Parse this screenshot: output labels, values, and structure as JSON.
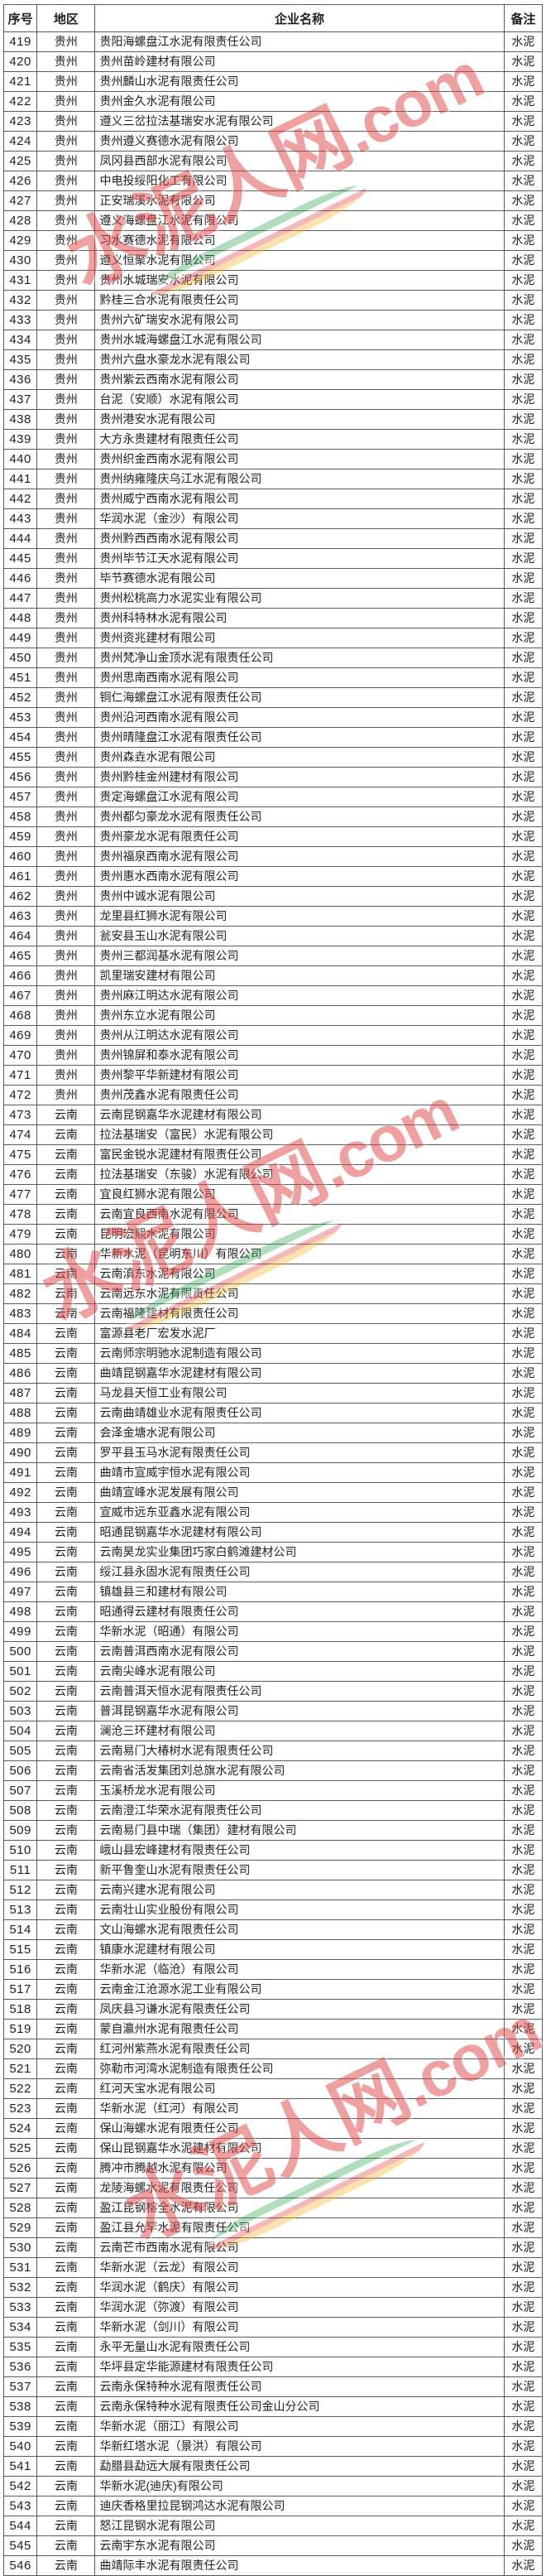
{
  "table": {
    "columns": {
      "no": "序号",
      "region": "地区",
      "name": "企业名称",
      "note": "备注"
    },
    "rows": [
      {
        "no": 419,
        "region": "贵州",
        "name": "贵阳海螺盘江水泥有限责任公司",
        "note": "水泥"
      },
      {
        "no": 420,
        "region": "贵州",
        "name": "贵州苗岭建材有限公司",
        "note": "水泥"
      },
      {
        "no": 421,
        "region": "贵州",
        "name": "贵州麟山水泥有限责任公司",
        "note": "水泥"
      },
      {
        "no": 422,
        "region": "贵州",
        "name": "贵州金久水泥有限公司",
        "note": "水泥"
      },
      {
        "no": 423,
        "region": "贵州",
        "name": "遵义三岔拉法基瑞安水泥有限公司",
        "note": "水泥"
      },
      {
        "no": 424,
        "region": "贵州",
        "name": "贵州遵义赛德水泥有限公司",
        "note": "水泥"
      },
      {
        "no": 425,
        "region": "贵州",
        "name": "凤冈县西部水泥有限公司",
        "note": "水泥"
      },
      {
        "no": 426,
        "region": "贵州",
        "name": "中电投绥阳化工有限公司",
        "note": "水泥"
      },
      {
        "no": 427,
        "region": "贵州",
        "name": "正安瑞溪水泥有限公司",
        "note": "水泥"
      },
      {
        "no": 428,
        "region": "贵州",
        "name": "遵义海螺盘江水泥有限公司",
        "note": "水泥"
      },
      {
        "no": 429,
        "region": "贵州",
        "name": "习水赛德水泥有限公司",
        "note": "水泥"
      },
      {
        "no": 430,
        "region": "贵州",
        "name": "遵义恒聚水泥有限公司",
        "note": "水泥"
      },
      {
        "no": 431,
        "region": "贵州",
        "name": "贵州水城瑞安水泥有限公司",
        "note": "水泥"
      },
      {
        "no": 432,
        "region": "贵州",
        "name": "黔桂三合水泥有限责任公司",
        "note": "水泥"
      },
      {
        "no": 433,
        "region": "贵州",
        "name": "贵州六矿瑞安水泥有限公司",
        "note": "水泥"
      },
      {
        "no": 434,
        "region": "贵州",
        "name": "贵州水城海螺盘江水泥有限公司",
        "note": "水泥"
      },
      {
        "no": 435,
        "region": "贵州",
        "name": "贵州六盘水豪龙水泥有限公司",
        "note": "水泥"
      },
      {
        "no": 436,
        "region": "贵州",
        "name": "贵州紫云西南水泥有限公司",
        "note": "水泥"
      },
      {
        "no": 437,
        "region": "贵州",
        "name": "台泥（安顺）水泥有限公司",
        "note": "水泥"
      },
      {
        "no": 438,
        "region": "贵州",
        "name": "贵州港安水泥有限公司",
        "note": "水泥"
      },
      {
        "no": 439,
        "region": "贵州",
        "name": "大方永贵建材有限责任公司",
        "note": "水泥"
      },
      {
        "no": 440,
        "region": "贵州",
        "name": "贵州织金西南水泥有限公司",
        "note": "水泥"
      },
      {
        "no": 441,
        "region": "贵州",
        "name": "贵州纳雍隆庆乌江水泥有限公司",
        "note": "水泥"
      },
      {
        "no": 442,
        "region": "贵州",
        "name": "贵州威宁西南水泥有限公司",
        "note": "水泥"
      },
      {
        "no": 443,
        "region": "贵州",
        "name": "华润水泥（金沙）有限公司",
        "note": "水泥"
      },
      {
        "no": 444,
        "region": "贵州",
        "name": "贵州黔西西南水泥有限公司",
        "note": "水泥"
      },
      {
        "no": 445,
        "region": "贵州",
        "name": "贵州毕节江天水泥有限公司",
        "note": "水泥"
      },
      {
        "no": 446,
        "region": "贵州",
        "name": "毕节赛德水泥有限公司",
        "note": "水泥"
      },
      {
        "no": 447,
        "region": "贵州",
        "name": "贵州松桃高力水泥实业有限公司",
        "note": "水泥"
      },
      {
        "no": 448,
        "region": "贵州",
        "name": "贵州科特林水泥有限公司",
        "note": "水泥"
      },
      {
        "no": 449,
        "region": "贵州",
        "name": "贵州资兆建材有限公司",
        "note": "水泥"
      },
      {
        "no": 450,
        "region": "贵州",
        "name": "贵州梵净山金顶水泥有限责任公司",
        "note": "水泥"
      },
      {
        "no": 451,
        "region": "贵州",
        "name": "贵州思南西南水泥有限公司",
        "note": "水泥"
      },
      {
        "no": 452,
        "region": "贵州",
        "name": "铜仁海螺盘江水泥有限责任公司",
        "note": "水泥"
      },
      {
        "no": 453,
        "region": "贵州",
        "name": "贵州沿河西南水泥有限公司",
        "note": "水泥"
      },
      {
        "no": 454,
        "region": "贵州",
        "name": "贵州晴隆盘江水泥有限责任公司",
        "note": "水泥"
      },
      {
        "no": 455,
        "region": "贵州",
        "name": "贵州森垚水泥有限公司",
        "note": "水泥"
      },
      {
        "no": 456,
        "region": "贵州",
        "name": "贵州黔桂金州建材有限公司",
        "note": "水泥"
      },
      {
        "no": 457,
        "region": "贵州",
        "name": "贵定海螺盘江水泥有限公司",
        "note": "水泥"
      },
      {
        "no": 458,
        "region": "贵州",
        "name": "贵州都匀豪龙水泥有限责任公司",
        "note": "水泥"
      },
      {
        "no": 459,
        "region": "贵州",
        "name": "贵州豪龙水泥有限责任公司",
        "note": "水泥"
      },
      {
        "no": 460,
        "region": "贵州",
        "name": "贵州福泉西南水泥有限公司",
        "note": "水泥"
      },
      {
        "no": 461,
        "region": "贵州",
        "name": "贵州惠水西南水泥有限公司",
        "note": "水泥"
      },
      {
        "no": 462,
        "region": "贵州",
        "name": "贵州中诚水泥有限公司",
        "note": "水泥"
      },
      {
        "no": 463,
        "region": "贵州",
        "name": "龙里县红狮水泥有限公司",
        "note": "水泥"
      },
      {
        "no": 464,
        "region": "贵州",
        "name": "瓮安县玉山水泥有限公司",
        "note": "水泥"
      },
      {
        "no": 465,
        "region": "贵州",
        "name": "贵州三都润基水泥有限公司",
        "note": "水泥"
      },
      {
        "no": 466,
        "region": "贵州",
        "name": "凯里瑞安建材有限公司",
        "note": "水泥"
      },
      {
        "no": 467,
        "region": "贵州",
        "name": "贵州麻江明达水泥有限公司",
        "note": "水泥"
      },
      {
        "no": 468,
        "region": "贵州",
        "name": "贵州东立水泥有限公司",
        "note": "水泥"
      },
      {
        "no": 469,
        "region": "贵州",
        "name": "贵州从江明达水泥有限公司",
        "note": "水泥"
      },
      {
        "no": 470,
        "region": "贵州",
        "name": "贵州锦屏和泰水泥有限公司",
        "note": "水泥"
      },
      {
        "no": 471,
        "region": "贵州",
        "name": "贵州黎平华新建材有限公司",
        "note": "水泥"
      },
      {
        "no": 472,
        "region": "贵州",
        "name": "贵州茂鑫水泥有限责任公司",
        "note": "水泥"
      },
      {
        "no": 473,
        "region": "云南",
        "name": "云南昆钢嘉华水泥建材有限公司",
        "note": "水泥"
      },
      {
        "no": 474,
        "region": "云南",
        "name": "拉法基瑞安（富民）水泥有限公司",
        "note": "水泥"
      },
      {
        "no": 475,
        "region": "云南",
        "name": "富民金锐水泥建材有限责任公司",
        "note": "水泥"
      },
      {
        "no": 476,
        "region": "云南",
        "name": "拉法基瑞安（东骏）水泥有限公司",
        "note": "水泥"
      },
      {
        "no": 477,
        "region": "云南",
        "name": "宜良红狮水泥有限公司",
        "note": "水泥"
      },
      {
        "no": 478,
        "region": "云南",
        "name": "云南宜良西南水泥有限公司",
        "note": "水泥"
      },
      {
        "no": 479,
        "region": "云南",
        "name": "昆明宏熙水泥有限公司",
        "note": "水泥"
      },
      {
        "no": 480,
        "region": "云南",
        "name": "华新水泥（昆明东川）有限公司",
        "note": "水泥"
      },
      {
        "no": 481,
        "region": "云南",
        "name": "云南滇东水泥有限公司",
        "note": "水泥"
      },
      {
        "no": 482,
        "region": "云南",
        "name": "云南远东水泥有限责任公司",
        "note": "水泥"
      },
      {
        "no": 483,
        "region": "云南",
        "name": "云南福隆建材有限责任公司",
        "note": "水泥"
      },
      {
        "no": 484,
        "region": "云南",
        "name": "富源县老厂宏发水泥厂",
        "note": "水泥"
      },
      {
        "no": 485,
        "region": "云南",
        "name": "云南师宗明驰水泥制造有限公司",
        "note": "水泥"
      },
      {
        "no": 486,
        "region": "云南",
        "name": "曲靖昆钢嘉华水泥建材有限公司",
        "note": "水泥"
      },
      {
        "no": 487,
        "region": "云南",
        "name": "马龙县天恒工业有限公司",
        "note": "水泥"
      },
      {
        "no": 488,
        "region": "云南",
        "name": "云南曲靖雄业水泥有限责任公司",
        "note": "水泥"
      },
      {
        "no": 489,
        "region": "云南",
        "name": "会泽金塘水泥有限公司",
        "note": "水泥"
      },
      {
        "no": 490,
        "region": "云南",
        "name": "罗平县玉马水泥有限责任公司",
        "note": "水泥"
      },
      {
        "no": 491,
        "region": "云南",
        "name": "曲靖市宣威宇恒水泥有限公司",
        "note": "水泥"
      },
      {
        "no": 492,
        "region": "云南",
        "name": "曲靖宣峰水泥发展有限公司",
        "note": "水泥"
      },
      {
        "no": 493,
        "region": "云南",
        "name": "宣威市远东亚鑫水泥有限公司",
        "note": "水泥"
      },
      {
        "no": 494,
        "region": "云南",
        "name": "昭通昆钢嘉华水泥建材有限公司",
        "note": "水泥"
      },
      {
        "no": 495,
        "region": "云南",
        "name": "云南昊龙实业集团巧家白鹤滩建材公司",
        "note": "水泥"
      },
      {
        "no": 496,
        "region": "云南",
        "name": "绥江县永固水泥有限责任公司",
        "note": "水泥"
      },
      {
        "no": 497,
        "region": "云南",
        "name": "镇雄县三和建材有限公司",
        "note": "水泥"
      },
      {
        "no": 498,
        "region": "云南",
        "name": "昭通得云建材有限责任公司",
        "note": "水泥"
      },
      {
        "no": 499,
        "region": "云南",
        "name": "华新水泥（昭通）有限公司",
        "note": "水泥"
      },
      {
        "no": 500,
        "region": "云南",
        "name": "云南普洱西南水泥有限公司",
        "note": "水泥"
      },
      {
        "no": 501,
        "region": "云南",
        "name": "云南尖峰水泥有限公司",
        "note": "水泥"
      },
      {
        "no": 502,
        "region": "云南",
        "name": "云南普洱天恒水泥有限责任公司",
        "note": "水泥"
      },
      {
        "no": 503,
        "region": "云南",
        "name": "普洱昆钢嘉华水泥有限公司",
        "note": "水泥"
      },
      {
        "no": 504,
        "region": "云南",
        "name": "澜沧三环建材有限公司",
        "note": "水泥"
      },
      {
        "no": 505,
        "region": "云南",
        "name": "云南易门大椿树水泥有限责任公司",
        "note": "水泥"
      },
      {
        "no": 506,
        "region": "云南",
        "name": "云南省活发集团刘总旗水泥有限公司",
        "note": "水泥"
      },
      {
        "no": 507,
        "region": "云南",
        "name": "玉溪桥龙水泥有限公司",
        "note": "水泥"
      },
      {
        "no": 508,
        "region": "云南",
        "name": "云南澄江华荣水泥有限责任公司",
        "note": "水泥"
      },
      {
        "no": 509,
        "region": "云南",
        "name": "云南易门县中瑞（集团）建材有限公司",
        "note": "水泥"
      },
      {
        "no": 510,
        "region": "云南",
        "name": "峨山县宏峰建材有限责任公司",
        "note": "水泥"
      },
      {
        "no": 511,
        "region": "云南",
        "name": "新平鲁奎山水泥有限责任公司",
        "note": "水泥"
      },
      {
        "no": 512,
        "region": "云南",
        "name": "云南兴建水泥有限公司",
        "note": "水泥"
      },
      {
        "no": 513,
        "region": "云南",
        "name": "云南壮山实业股份有限公司",
        "note": "水泥"
      },
      {
        "no": 514,
        "region": "云南",
        "name": "文山海螺水泥有限责任公司",
        "note": "水泥"
      },
      {
        "no": 515,
        "region": "云南",
        "name": "镇康水泥建材有限公司",
        "note": "水泥"
      },
      {
        "no": 516,
        "region": "云南",
        "name": "华新水泥（临沧）有限公司",
        "note": "水泥"
      },
      {
        "no": 517,
        "region": "云南",
        "name": "云南金江沧源水泥工业有限公司",
        "note": "水泥"
      },
      {
        "no": 518,
        "region": "云南",
        "name": "凤庆县习谦水泥有限责任公司",
        "note": "水泥"
      },
      {
        "no": 519,
        "region": "云南",
        "name": "蒙自瀛州水泥有限责任公司",
        "note": "水泥"
      },
      {
        "no": 520,
        "region": "云南",
        "name": "红河州紫燕水泥有限责任公司",
        "note": "水泥"
      },
      {
        "no": 521,
        "region": "云南",
        "name": "弥勒市河湾水泥制造有限责任公司",
        "note": "水泥"
      },
      {
        "no": 522,
        "region": "云南",
        "name": "红河天宝水泥有限公司",
        "note": "水泥"
      },
      {
        "no": 523,
        "region": "云南",
        "name": "华新水泥（红河）有限公司",
        "note": "水泥"
      },
      {
        "no": 524,
        "region": "云南",
        "name": "保山海螺水泥有限责任公司",
        "note": "水泥"
      },
      {
        "no": 525,
        "region": "云南",
        "name": "保山昆钢嘉华水泥建材有限公司",
        "note": "水泥"
      },
      {
        "no": 526,
        "region": "云南",
        "name": "腾冲市腾越水泥有限公司",
        "note": "水泥"
      },
      {
        "no": 527,
        "region": "云南",
        "name": "龙陵海螺水泥有限责任公司",
        "note": "水泥"
      },
      {
        "no": 528,
        "region": "云南",
        "name": "盈江昆钢榕全水泥有限公司",
        "note": "水泥"
      },
      {
        "no": 529,
        "region": "云南",
        "name": "盈江县允罕水泥有限责任公司",
        "note": "水泥"
      },
      {
        "no": 530,
        "region": "云南",
        "name": "云南芒市西南水泥有限公司",
        "note": "水泥"
      },
      {
        "no": 531,
        "region": "云南",
        "name": "华新水泥（云龙）有限公司",
        "note": "水泥"
      },
      {
        "no": 532,
        "region": "云南",
        "name": "华润水泥（鹤庆）有限公司",
        "note": "水泥"
      },
      {
        "no": 533,
        "region": "云南",
        "name": "华润水泥（弥渡）有限公司",
        "note": "水泥"
      },
      {
        "no": 534,
        "region": "云南",
        "name": "华新水泥（剑川）有限公司",
        "note": "水泥"
      },
      {
        "no": 535,
        "region": "云南",
        "name": "永平无量山水泥有限责任公司",
        "note": "水泥"
      },
      {
        "no": 536,
        "region": "云南",
        "name": "华坪县定华能源建材有限责任公司",
        "note": "水泥"
      },
      {
        "no": 537,
        "region": "云南",
        "name": "云南永保特种水泥有限责任公司",
        "note": "水泥"
      },
      {
        "no": 538,
        "region": "云南",
        "name": "云南永保特种水泥有限责任公司金山分公司",
        "note": "水泥"
      },
      {
        "no": 539,
        "region": "云南",
        "name": "华新水泥（丽江）有限公司",
        "note": "水泥"
      },
      {
        "no": 540,
        "region": "云南",
        "name": "华新红塔水泥（景洪）有限公司",
        "note": "水泥"
      },
      {
        "no": 541,
        "region": "云南",
        "name": "勐腊县勐远大展有限责任公司",
        "note": "水泥"
      },
      {
        "no": 542,
        "region": "云南",
        "name": "华新水泥(迪庆)有限公司",
        "note": "水泥"
      },
      {
        "no": 543,
        "region": "云南",
        "name": "迪庆香格里拉昆钢鸿达水泥有限公司",
        "note": "水泥"
      },
      {
        "no": 544,
        "region": "云南",
        "name": "怒江昆钢水泥有限公司",
        "note": "水泥"
      },
      {
        "no": 545,
        "region": "云南",
        "name": "云南宇东水泥有限公司",
        "note": "水泥"
      },
      {
        "no": 546,
        "region": "云南",
        "name": "曲靖际丰水泥有限责任公司",
        "note": "水泥"
      }
    ]
  },
  "watermark": {
    "text": "水泥人网",
    "suffix": ".com",
    "color": "#e04444",
    "ribbon_colors": [
      "#2faa4f",
      "#ffffff",
      "#e04444",
      "#f0b429"
    ]
  },
  "colors": {
    "table_border": "#5a5a5a",
    "text": "#1f1f1f",
    "background": "#ffffff"
  }
}
